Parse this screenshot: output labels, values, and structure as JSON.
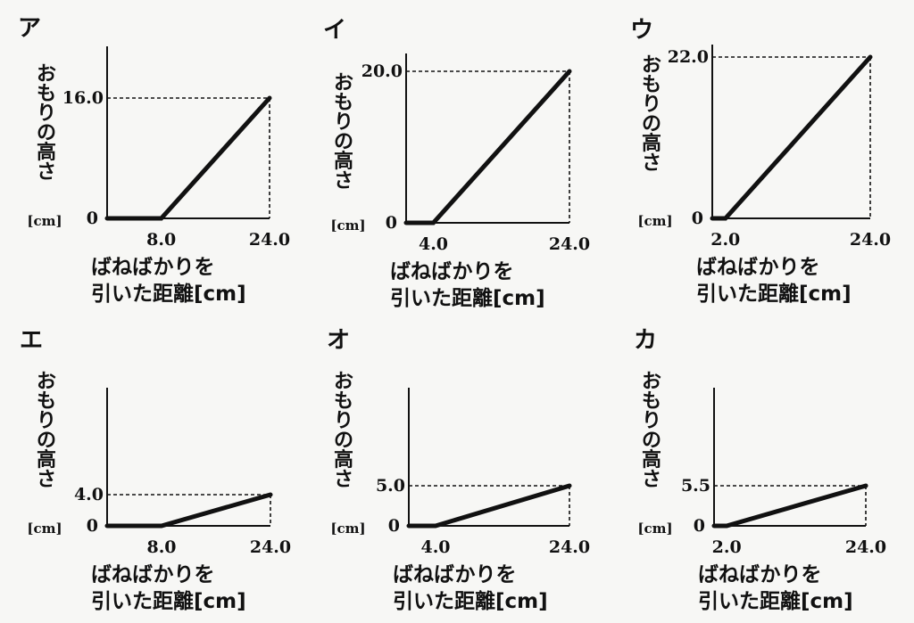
{
  "chart_data": [
    {
      "type": "line",
      "panel_label": "ア",
      "ylabel": "おもりの高さ",
      "yunit": "[cm]",
      "xlabel_line1": "ばねばかりを",
      "xlabel_line2": "引いた距離[cm]",
      "x": [
        0,
        8.0,
        24.0
      ],
      "y": [
        0,
        0,
        16.0
      ],
      "x_ticks": [
        "8.0",
        "24.0"
      ],
      "y_tick": "16.0",
      "origin_label": "0"
    },
    {
      "type": "line",
      "panel_label": "イ",
      "ylabel": "おもりの高さ",
      "yunit": "[cm]",
      "xlabel_line1": "ばねばかりを",
      "xlabel_line2": "引いた距離[cm]",
      "x": [
        0,
        4.0,
        24.0
      ],
      "y": [
        0,
        0,
        20.0
      ],
      "x_ticks": [
        "4.0",
        "24.0"
      ],
      "y_tick": "20.0",
      "origin_label": "0"
    },
    {
      "type": "line",
      "panel_label": "ウ",
      "ylabel": "おもりの高さ",
      "yunit": "[cm]",
      "xlabel_line1": "ばねばかりを",
      "xlabel_line2": "引いた距離[cm]",
      "x": [
        0,
        2.0,
        24.0
      ],
      "y": [
        0,
        0,
        22.0
      ],
      "x_ticks": [
        "2.0",
        "24.0"
      ],
      "y_tick": "22.0",
      "origin_label": "0"
    },
    {
      "type": "line",
      "panel_label": "エ",
      "ylabel": "おもりの高さ",
      "yunit": "[cm]",
      "xlabel_line1": "ばねばかりを",
      "xlabel_line2": "引いた距離[cm]",
      "x": [
        0,
        8.0,
        24.0
      ],
      "y": [
        0,
        0,
        4.0
      ],
      "x_ticks": [
        "8.0",
        "24.0"
      ],
      "y_tick": "4.0",
      "origin_label": "0"
    },
    {
      "type": "line",
      "panel_label": "オ",
      "ylabel": "おもりの高さ",
      "yunit": "[cm]",
      "xlabel_line1": "ばねばかりを",
      "xlabel_line2": "引いた距離[cm]",
      "x": [
        0,
        4.0,
        24.0
      ],
      "y": [
        0,
        0,
        5.0
      ],
      "x_ticks": [
        "4.0",
        "24.0"
      ],
      "y_tick": "5.0",
      "origin_label": "0"
    },
    {
      "type": "line",
      "panel_label": "カ",
      "ylabel": "おもりの高さ",
      "yunit": "[cm]",
      "xlabel_line1": "ばねばかりを",
      "xlabel_line2": "引いた距離[cm]",
      "x": [
        0,
        2.0,
        24.0
      ],
      "y": [
        0,
        0,
        5.5
      ],
      "x_ticks": [
        "2.0",
        "24.0"
      ],
      "y_tick": "5.5",
      "origin_label": "0"
    }
  ]
}
